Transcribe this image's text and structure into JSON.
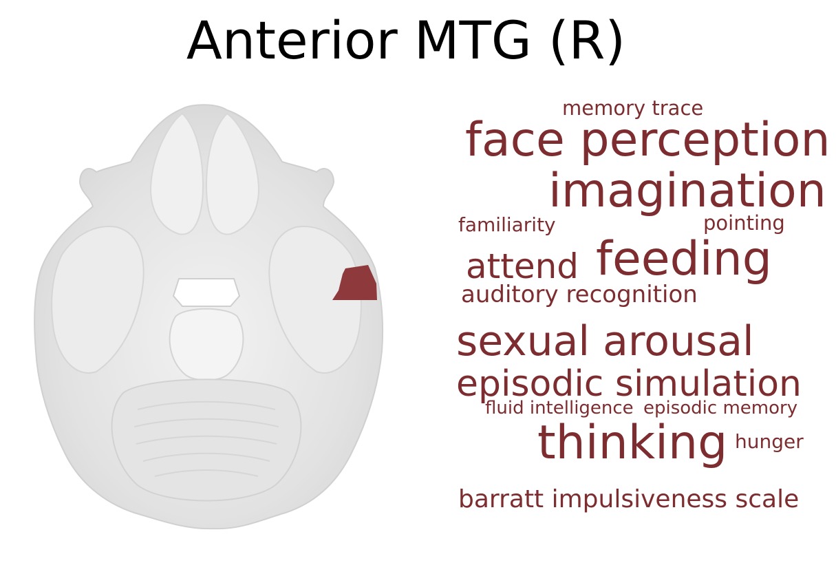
{
  "title": "Anterior MTG (R)",
  "colors": {
    "term": "#7d2d2f",
    "highlight": "#8e3a3c",
    "brain": "#e7e7e7"
  },
  "brain_slice": {
    "view": "axial",
    "highlight_region": "anterior-mtg-right"
  },
  "word_cloud": [
    {
      "text": "memory trace"
    },
    {
      "text": "face perception"
    },
    {
      "text": "imagination"
    },
    {
      "text": "familiarity"
    },
    {
      "text": "pointing"
    },
    {
      "text": "attend"
    },
    {
      "text": "feeding"
    },
    {
      "text": "auditory recognition"
    },
    {
      "text": "sexual arousal"
    },
    {
      "text": "episodic simulation"
    },
    {
      "text": "fluid intelligence"
    },
    {
      "text": "episodic memory"
    },
    {
      "text": "thinking"
    },
    {
      "text": "hunger"
    },
    {
      "text": "barratt impulsiveness scale"
    }
  ]
}
